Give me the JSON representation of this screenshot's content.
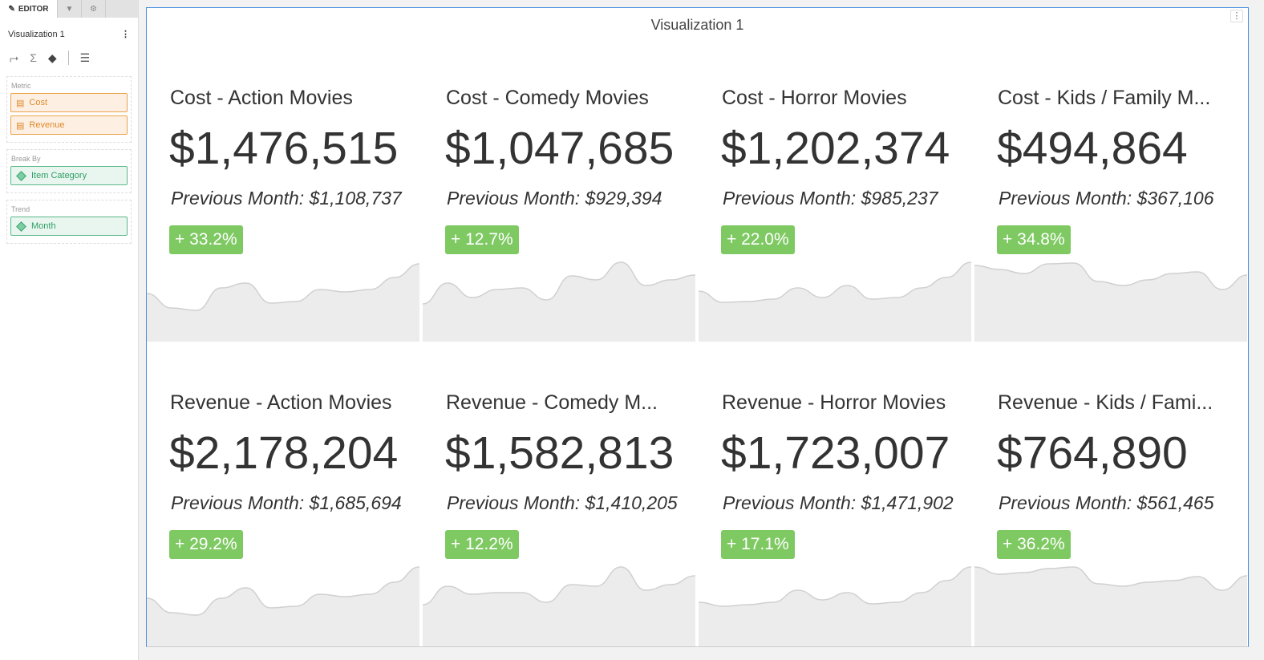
{
  "sidebar": {
    "tabs": [
      {
        "label": "EDITOR",
        "icon": "pencil-icon",
        "active": true
      },
      {
        "icon": "filter-icon"
      },
      {
        "icon": "gear-icon"
      }
    ],
    "visualization_name": "Visualization 1",
    "tools": [
      "axis-swap-icon",
      "sigma-icon",
      "eraser-icon",
      "settings-sliders-icon"
    ],
    "zones": {
      "metric": {
        "label": "Metric",
        "items": [
          "Cost",
          "Revenue"
        ]
      },
      "break_by": {
        "label": "Break By",
        "items": [
          "Item Category"
        ]
      },
      "trend": {
        "label": "Trend",
        "items": [
          "Month"
        ]
      }
    }
  },
  "panel": {
    "title": "Visualization 1",
    "badge_color": "#7ec962",
    "cards": [
      {
        "title": "Cost - Action Movies",
        "value": "$1,476,515",
        "previous": "Previous Month: $1,108,737",
        "change": "+ 33.2%",
        "trend": [
          60,
          42,
          39,
          67,
          73,
          48,
          50,
          65,
          62,
          65,
          80,
          97
        ]
      },
      {
        "title": "Cost - Comedy Movies",
        "value": "$1,047,685",
        "previous": "Previous Month: $929,394",
        "change": "+ 12.7%",
        "trend": [
          47,
          73,
          55,
          65,
          67,
          52,
          82,
          77,
          99,
          70,
          77,
          83
        ]
      },
      {
        "title": "Cost - Horror Movies",
        "value": "$1,202,374",
        "previous": "Previous Month: $985,237",
        "change": "+ 22.0%",
        "trend": [
          63,
          49,
          50,
          53,
          67,
          55,
          70,
          53,
          55,
          67,
          80,
          99
        ]
      },
      {
        "title": "Cost - Kids / Family M...",
        "value": "$494,864",
        "previous": "Previous Month: $367,106",
        "change": "+ 34.8%",
        "trend": [
          95,
          90,
          85,
          97,
          98,
          75,
          70,
          77,
          85,
          87,
          65,
          83
        ]
      },
      {
        "title": "Revenue - Action Movies",
        "value": "$2,178,204",
        "previous": "Previous Month: $1,685,694",
        "change": "+ 29.2%",
        "trend": [
          60,
          42,
          39,
          60,
          73,
          48,
          50,
          65,
          62,
          65,
          80,
          99
        ]
      },
      {
        "title": "Revenue - Comedy M...",
        "value": "$1,582,813",
        "previous": "Previous Month: $1,410,205",
        "change": "+ 12.2%",
        "trend": [
          52,
          75,
          65,
          67,
          67,
          55,
          77,
          75,
          99,
          70,
          77,
          88
        ]
      },
      {
        "title": "Revenue - Horror Movies",
        "value": "$1,723,007",
        "previous": "Previous Month: $1,471,902",
        "change": "+ 17.1%",
        "trend": [
          55,
          50,
          52,
          55,
          70,
          58,
          67,
          53,
          55,
          67,
          82,
          99
        ]
      },
      {
        "title": "Revenue - Kids / Fami...",
        "value": "$764,890",
        "previous": "Previous Month: $561,465",
        "change": "+ 36.2%",
        "trend": [
          99,
          90,
          92,
          97,
          99,
          78,
          75,
          80,
          82,
          87,
          70,
          88
        ]
      }
    ]
  }
}
